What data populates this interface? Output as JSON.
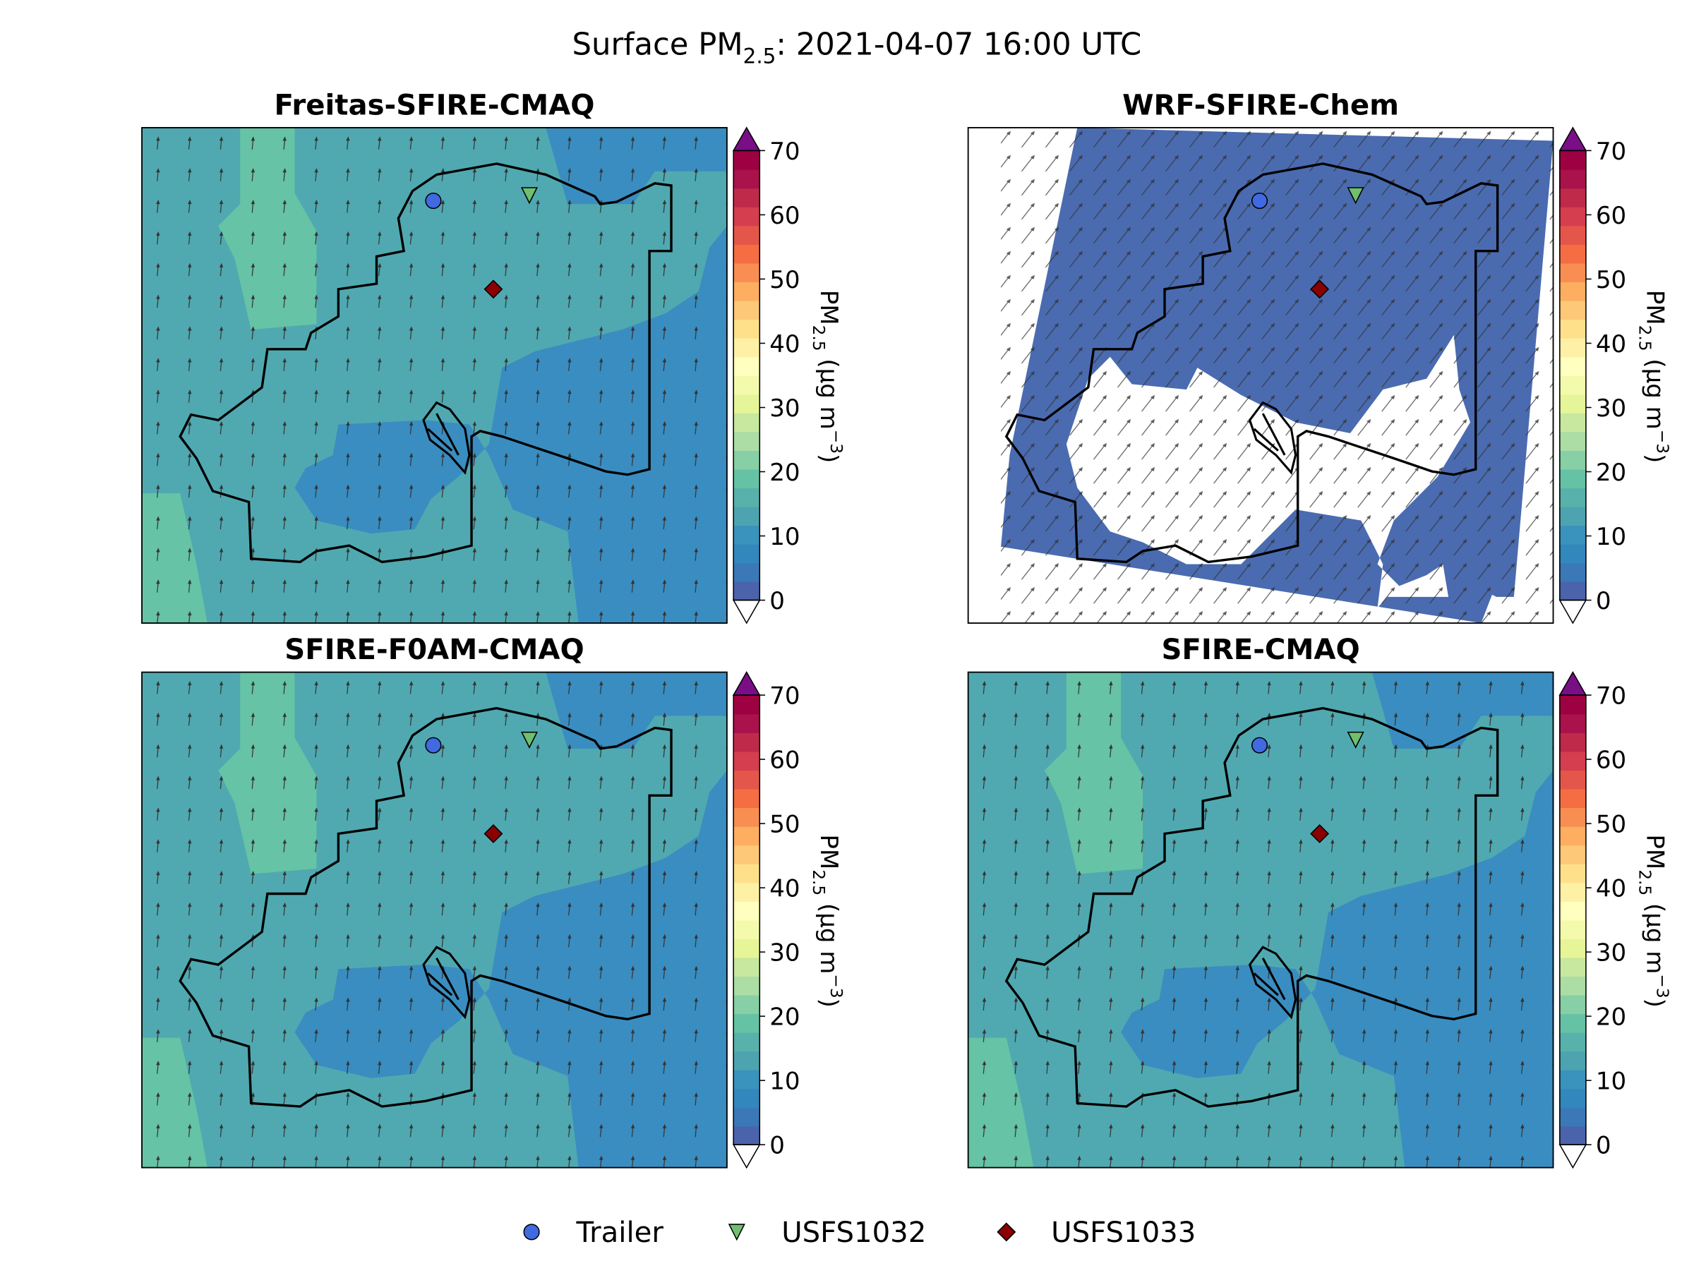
{
  "title": {
    "text": "Surface PM",
    "sub": "2.5",
    "rest": ": 2021-04-07 16:00 UTC"
  },
  "panels": [
    {
      "title": "Freitas-SFIRE-CMAQ"
    },
    {
      "title": "WRF-SFIRE-Chem"
    },
    {
      "title": "SFIRE-F0AM-CMAQ"
    },
    {
      "title": "SFIRE-CMAQ"
    }
  ],
  "colorbar": {
    "label": {
      "text": "PM",
      "sub": "2.5",
      "unit": " (μg m",
      "sup": "−3",
      "close": ")"
    },
    "lim": [
      0,
      70
    ],
    "ticks": [
      0,
      10,
      20,
      30,
      40,
      50,
      60,
      70
    ],
    "over_color": "#7a0e86",
    "under_color": "#ffffff"
  },
  "legend": [
    {
      "name": "Trailer",
      "color": "#4169e1",
      "marker": "circle"
    },
    {
      "name": "USFS1032",
      "color": "#6fbf6f",
      "marker": "triangle"
    },
    {
      "name": "USFS1033",
      "color": "#8b0000",
      "marker": "diamond"
    }
  ]
}
